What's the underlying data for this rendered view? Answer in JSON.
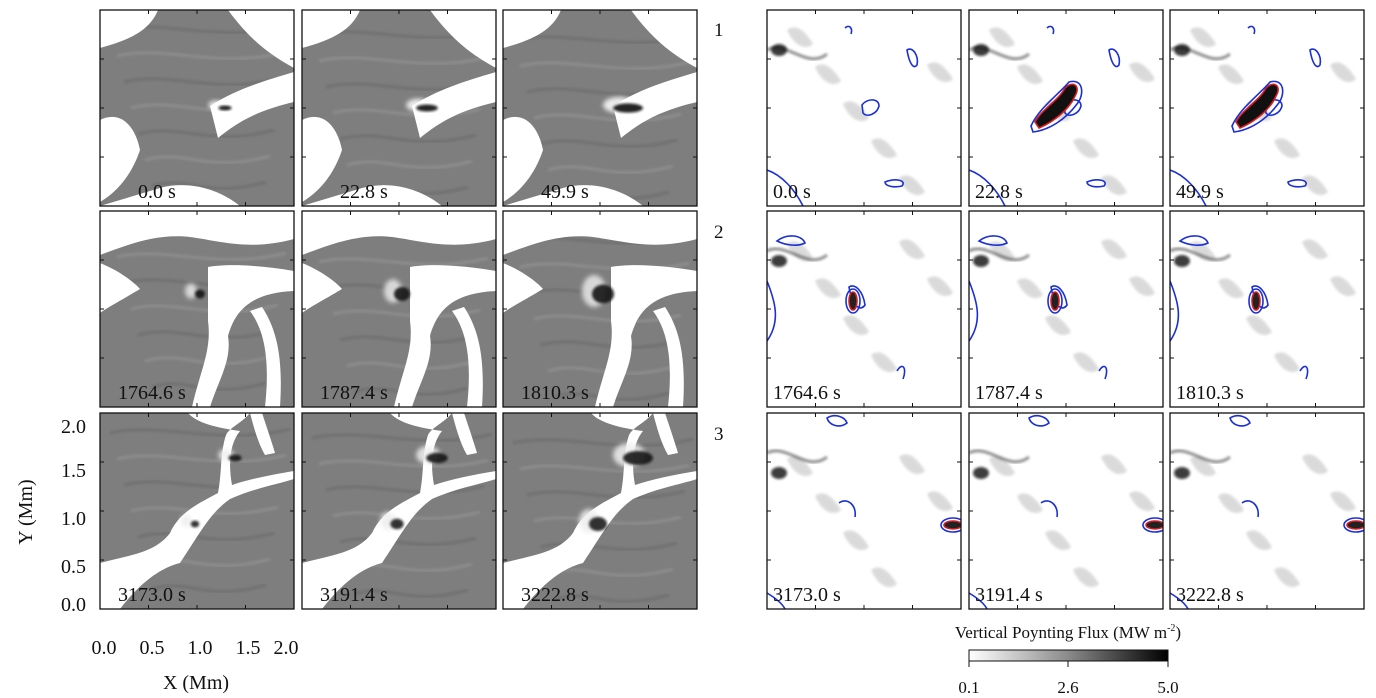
{
  "figure": {
    "row_numbers": [
      "1",
      "2",
      "3"
    ],
    "rows": [
      {
        "times": [
          "0.0 s",
          "22.8 s",
          "49.9 s"
        ]
      },
      {
        "times": [
          "1764.6 s",
          "1787.4 s",
          "1810.3 s"
        ]
      },
      {
        "times": [
          "3173.0 s",
          "3191.4 s",
          "3222.8 s"
        ]
      }
    ],
    "left_axes": {
      "xlabel": "X (Mm)",
      "ylabel": "Y (Mm)",
      "x_ticks": [
        "0.0",
        "0.5",
        "1.0",
        "1.5",
        "2.0"
      ],
      "y_ticks": [
        "0.0",
        "0.5",
        "1.0",
        "1.5",
        "2.0"
      ]
    },
    "colorbar": {
      "title": "Vertical Poynting Flux (MW m",
      "title_sup": "-2",
      "title_end": ")",
      "ticks": [
        "0.1",
        "2.6",
        "5.0"
      ],
      "range": [
        0.1,
        5.0
      ]
    },
    "colors": {
      "contour_blue": "#1a2fd6",
      "contour_red": "#d41e1e",
      "frame": "#111111"
    }
  }
}
